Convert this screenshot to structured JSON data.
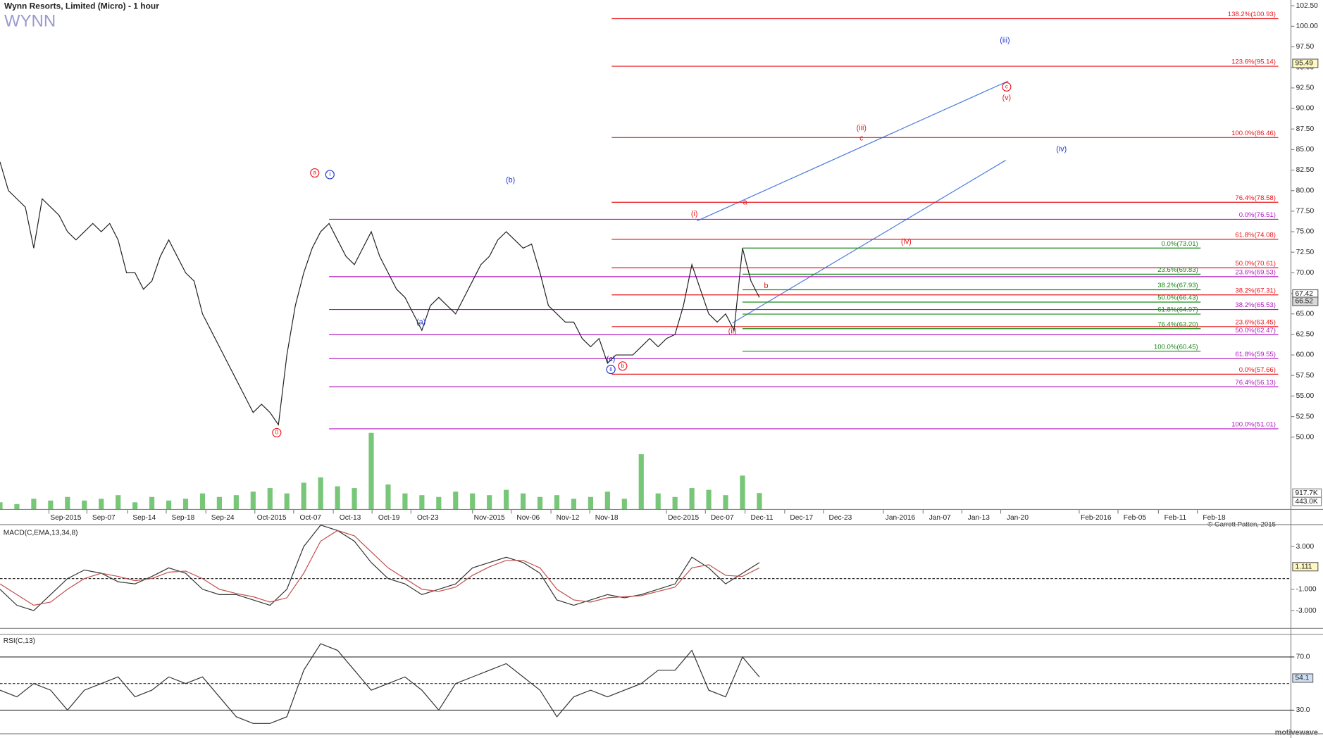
{
  "header": {
    "title": "Wynn Resorts, Limited (Micro) - 1 hour",
    "symbol": "WYNN",
    "credit": "© Garrett Patten, 2015",
    "watermark": "motivewave"
  },
  "chart_data": [
    {
      "type": "line",
      "color": "#222222",
      "values": [
        83.5,
        80,
        79,
        78,
        73,
        79,
        78,
        77,
        75,
        74,
        75,
        76,
        75,
        76,
        74,
        70,
        70,
        68,
        69,
        72,
        74,
        72,
        70,
        69,
        65,
        63,
        61,
        59,
        57,
        55,
        53,
        54,
        53,
        51.5,
        60,
        66,
        70,
        73,
        75,
        76,
        74,
        72,
        71,
        73,
        75,
        72,
        70,
        68,
        67,
        65,
        63,
        66,
        67,
        66,
        65,
        67,
        69,
        71,
        72,
        74,
        75,
        74,
        73,
        73.5,
        70,
        66,
        65,
        64,
        64,
        62,
        61,
        62,
        59,
        60,
        60,
        60,
        61,
        62,
        61,
        62,
        62.5,
        66,
        71,
        68,
        65,
        64,
        65,
        63,
        73,
        69,
        67
      ],
      "ylim": [
        41.2,
        103.2
      ],
      "yticks": [
        {
          "value": 102.5,
          "label": "102.50"
        },
        {
          "value": 100,
          "label": "100.00"
        },
        {
          "value": 97.5,
          "label": "97.50"
        },
        {
          "value": 95,
          "label": "95.00"
        },
        {
          "value": 92.5,
          "label": "92.50"
        },
        {
          "value": 90,
          "label": "90.00"
        },
        {
          "value": 87.5,
          "label": "87.50"
        },
        {
          "value": 85,
          "label": "85.00"
        },
        {
          "value": 82.5,
          "label": "82.50"
        },
        {
          "value": 80,
          "label": "80.00"
        },
        {
          "value": 77.5,
          "label": "77.50"
        },
        {
          "value": 75,
          "label": "75.00"
        },
        {
          "value": 72.5,
          "label": "72.50"
        },
        {
          "value": 70,
          "label": "70.00"
        },
        {
          "value": 67.5,
          "label": "67.50"
        },
        {
          "value": 65,
          "label": "65.00"
        },
        {
          "value": 62.5,
          "label": "62.50"
        },
        {
          "value": 60,
          "label": "60.00"
        },
        {
          "value": 57.5,
          "label": "57.50"
        },
        {
          "value": 55,
          "label": "55.00"
        },
        {
          "value": 52.5,
          "label": "52.50"
        },
        {
          "value": 50,
          "label": "50.00"
        }
      ],
      "price_labels": [
        {
          "value": 95.49,
          "label": "95.49"
        },
        {
          "value": 67.42,
          "label": "67.42"
        },
        {
          "value": 66.52,
          "label": "66.52"
        }
      ],
      "x_labels": [
        "Sep-2015",
        "Sep-07",
        "Sep-14",
        "Sep-18",
        "Sep-24",
        "Oct-2015",
        "Oct-07",
        "Oct-13",
        "Oct-19",
        "Oct-23",
        "Nov-2015",
        "Nov-06",
        "Nov-12",
        "Nov-18",
        "Dec-2015",
        "Dec-07",
        "Dec-11",
        "Dec-17",
        "Dec-23",
        "Jan-2016",
        "Jan-07",
        "Jan-13",
        "Jan-20",
        "Feb-2016",
        "Feb-05",
        "Feb-11",
        "Feb-18"
      ],
      "fib_sets": [
        {
          "color": "#e8181e",
          "levels": [
            {
              "value": 100.93,
              "label": "138.2%(100.93)"
            },
            {
              "value": 95.14,
              "label": "123.6%(95.14)"
            },
            {
              "value": 86.46,
              "label": "100.0%(86.46)"
            },
            {
              "value": 78.58,
              "label": "76.4%(78.58)"
            },
            {
              "value": 74.08,
              "label": "61.8%(74.08)"
            },
            {
              "value": 70.61,
              "label": "50.0%(70.61)"
            },
            {
              "value": 67.31,
              "label": "38.2%(67.31)"
            },
            {
              "value": 63.45,
              "label": "23.6%(63.45)"
            },
            {
              "value": 57.66,
              "label": "0.0%(57.66)"
            }
          ]
        },
        {
          "color": "#b01bc0",
          "levels": [
            {
              "value": 76.51,
              "label": "0.0%(76.51)"
            },
            {
              "value": 69.53,
              "label": "23.6%(69.53)"
            },
            {
              "value": 65.53,
              "label": "38.2%(65.53)"
            },
            {
              "value": 62.47,
              "label": "50.0%(62.47)"
            },
            {
              "value": 59.55,
              "label": "61.8%(59.55)"
            },
            {
              "value": 56.13,
              "label": "76.4%(56.13)"
            },
            {
              "value": 51.01,
              "label": "100.0%(51.01)"
            }
          ]
        },
        {
          "color": "#1a8a1a",
          "levels": [
            {
              "value": 73.01,
              "label": "0.0%(73.01)"
            },
            {
              "value": 69.83,
              "label": "23.6%(69.83)"
            },
            {
              "value": 67.93,
              "label": "38.2%(67.93)"
            },
            {
              "value": 66.43,
              "label": "50.0%(66.43)"
            },
            {
              "value": 64.97,
              "label": "61.8%(64.97)"
            },
            {
              "value": 63.2,
              "label": "76.4%(63.20)"
            },
            {
              "value": 60.45,
              "label": "100.0%(60.45)"
            }
          ]
        }
      ],
      "wave_labels": [
        {
          "text": "a",
          "color": "#e8181e",
          "circled": true
        },
        {
          "text": "i",
          "color": "#2233cc",
          "circled": true
        },
        {
          "text": "(b)",
          "color": "#2233cc",
          "circled": false
        },
        {
          "text": "(a)",
          "color": "#2233cc",
          "circled": false
        },
        {
          "text": "(c)",
          "color": "#2233cc",
          "circled": false
        },
        {
          "text": "ii",
          "color": "#2233cc",
          "circled": true
        },
        {
          "text": "b",
          "color": "#e8181e",
          "circled": true
        },
        {
          "text": "0",
          "color": "#e8181e",
          "circled": true
        },
        {
          "text": "(i)",
          "color": "#e8181e",
          "circled": false
        },
        {
          "text": "a",
          "color": "#e8181e",
          "circled": false
        },
        {
          "text": "(ii)",
          "color": "#e8181e",
          "circled": false
        },
        {
          "text": "b",
          "color": "#e8181e",
          "circled": false
        },
        {
          "text": "(iii)",
          "color": "#e8181e",
          "circled": false
        },
        {
          "text": "c",
          "color": "#e8181e",
          "circled": false
        },
        {
          "text": "(iv)",
          "color": "#e8181e",
          "circled": false
        },
        {
          "text": "c",
          "color": "#e8181e",
          "circled": true
        },
        {
          "text": "(v)",
          "color": "#e8181e",
          "circled": false
        },
        {
          "text": "(iii)",
          "color": "#2233cc",
          "circled": false
        },
        {
          "text": "(iv)",
          "color": "#2233cc",
          "circled": false
        }
      ],
      "volume": {
        "color": "#3fae3f",
        "ylim": [
          0,
          4500000
        ],
        "values": [
          400000,
          300000,
          600000,
          500000,
          700000,
          500000,
          600000,
          800000,
          400000,
          700000,
          500000,
          600000,
          900000,
          700000,
          800000,
          1000000,
          1200000,
          900000,
          1500000,
          1800000,
          1300000,
          1200000,
          4300000,
          1400000,
          900000,
          800000,
          700000,
          1000000,
          900000,
          800000,
          1100000,
          900000,
          700000,
          800000,
          600000,
          700000,
          1000000,
          600000,
          3100000,
          900000,
          700000,
          1200000,
          1100000,
          800000,
          1900000,
          917700
        ],
        "yticks": [
          {
            "value": 917700,
            "label": "917.7K"
          },
          {
            "value": 443000,
            "label": "443.0K"
          }
        ]
      }
    },
    {
      "type": "line",
      "title": "MACD(C,EMA,13,34,8)",
      "lines": [
        {
          "color": "#333333",
          "values": [
            -1.0,
            -2.5,
            -3.0,
            -1.5,
            0,
            0.8,
            0.5,
            -0.3,
            -0.5,
            0.2,
            1.0,
            0.5,
            -1.0,
            -1.5,
            -1.5,
            -2.0,
            -2.5,
            -1.0,
            3.0,
            5.0,
            4.5,
            3.5,
            1.5,
            0,
            -0.5,
            -1.5,
            -1.0,
            -0.5,
            1.0,
            1.5,
            2.0,
            1.5,
            0.5,
            -2.0,
            -2.5,
            -2.0,
            -1.5,
            -1.8,
            -1.5,
            -1.0,
            -0.5,
            2.0,
            1.0,
            -0.5,
            0.5,
            1.5
          ]
        },
        {
          "color": "#c0504d",
          "values": [
            -0.5,
            -1.5,
            -2.5,
            -2.2,
            -1.0,
            0,
            0.5,
            0.2,
            -0.2,
            0,
            0.6,
            0.7,
            0,
            -1.0,
            -1.4,
            -1.7,
            -2.2,
            -1.8,
            0.5,
            3.5,
            4.5,
            4.0,
            2.5,
            1.0,
            0,
            -1.0,
            -1.2,
            -0.8,
            0.3,
            1.1,
            1.7,
            1.7,
            1.0,
            -1.0,
            -2.0,
            -2.2,
            -1.8,
            -1.7,
            -1.6,
            -1.2,
            -0.8,
            1.0,
            1.3,
            0.3,
            0.2,
            1.0
          ]
        }
      ],
      "ylim": [
        -4.66,
        5.05
      ],
      "yticks": [
        {
          "value": 3,
          "label": "3.000"
        },
        {
          "value": -1,
          "label": "-1.000"
        },
        {
          "value": -3,
          "label": "-3.000"
        }
      ],
      "reference_lines": [
        0
      ],
      "current": {
        "value": 1.111,
        "label": "1.111"
      }
    },
    {
      "type": "line",
      "title": "RSI(C,13)",
      "color": "#333333",
      "values": [
        45,
        40,
        50,
        45,
        30,
        45,
        50,
        55,
        40,
        45,
        55,
        50,
        55,
        40,
        25,
        20,
        20,
        25,
        60,
        80,
        75,
        60,
        45,
        50,
        55,
        45,
        30,
        50,
        55,
        60,
        65,
        55,
        45,
        25,
        40,
        45,
        40,
        45,
        50,
        60,
        60,
        75,
        45,
        40,
        70,
        55
      ],
      "ylim": [
        12.2,
        87.1
      ],
      "yticks": [
        {
          "value": 70,
          "label": "70.0"
        },
        {
          "value": 30,
          "label": "30.0"
        }
      ],
      "reference_lines": [
        50
      ],
      "current": {
        "value": 54.1,
        "label": "54.1"
      }
    }
  ]
}
